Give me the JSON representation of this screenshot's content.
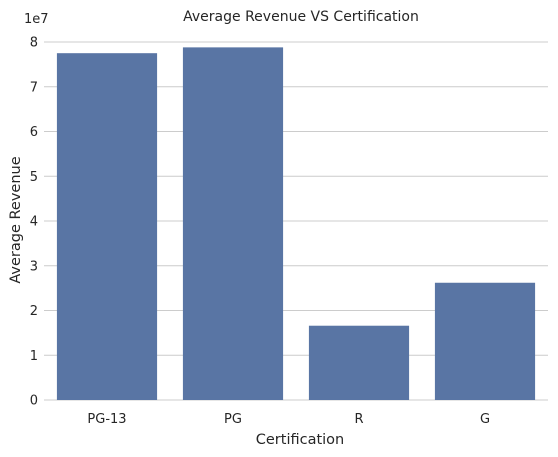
{
  "chart_data": {
    "type": "bar",
    "title": "Average Revenue VS Certification",
    "xlabel": "Certification",
    "ylabel": "Average Revenue",
    "scale_label": "1e7",
    "categories": [
      "PG-13",
      "PG",
      "R",
      "G"
    ],
    "values": [
      77500000,
      78800000,
      16600000,
      26200000
    ],
    "ylim": [
      0,
      80000000
    ],
    "yticks": [
      0,
      1,
      2,
      3,
      4,
      5,
      6,
      7,
      8
    ],
    "grid": "y",
    "bar_color": "#5975a4",
    "grid_color": "#cccccc"
  }
}
